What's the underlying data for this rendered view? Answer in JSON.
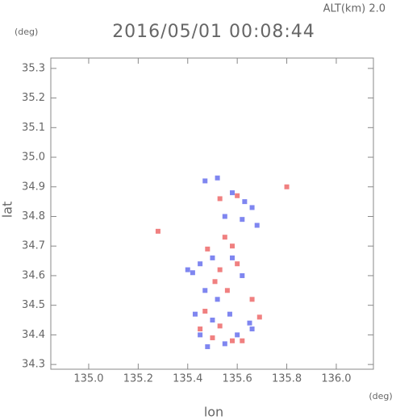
{
  "chart_data": {
    "type": "scatter",
    "title": "2016/05/01 00:08:44",
    "subtitle": "ALT(km) 2.0",
    "y_unit": "(deg)",
    "x_unit": "(deg)",
    "x_label": "lon",
    "y_label": "lat",
    "xlim": [
      134.847,
      136.15
    ],
    "ylim": [
      34.284,
      35.335
    ],
    "xticks": [
      {
        "value": 135,
        "label": "135.0"
      },
      135.2,
      135.4,
      135.6,
      135.8,
      {
        "value": 136,
        "label": "136.0"
      }
    ],
    "yticks": [
      34.3,
      34.4,
      34.5,
      34.6,
      34.7,
      34.8,
      34.9,
      {
        "value": 35,
        "label": "35.0"
      },
      35.1,
      35.2,
      35.3
    ],
    "series": [
      {
        "color": "#7f86f0",
        "x": [
          135.47,
          135.52,
          135.58,
          135.63,
          135.66,
          135.55,
          135.62,
          135.68,
          135.45,
          135.42,
          135.5,
          135.58,
          135.62,
          135.47,
          135.52,
          135.43,
          135.5,
          135.57,
          135.65,
          135.45,
          135.6,
          135.66,
          135.48,
          135.55,
          135.4
        ],
        "values": [
          34.92,
          34.93,
          34.88,
          34.85,
          34.83,
          34.8,
          34.79,
          34.77,
          34.64,
          34.61,
          34.66,
          34.66,
          34.6,
          34.55,
          34.52,
          34.47,
          34.45,
          34.47,
          34.44,
          34.4,
          34.4,
          34.42,
          34.36,
          34.37,
          34.62
        ]
      },
      {
        "color": "#f08080",
        "x": [
          135.53,
          135.6,
          135.8,
          135.28,
          135.55,
          135.58,
          135.48,
          135.53,
          135.6,
          135.51,
          135.56,
          135.66,
          135.47,
          135.53,
          135.45,
          135.58,
          135.62,
          135.5,
          135.69
        ],
        "values": [
          34.86,
          34.87,
          34.9,
          34.75,
          34.73,
          34.7,
          34.69,
          34.62,
          34.64,
          34.58,
          34.55,
          34.52,
          34.48,
          34.43,
          34.42,
          34.38,
          34.38,
          34.39,
          34.46
        ]
      }
    ]
  }
}
